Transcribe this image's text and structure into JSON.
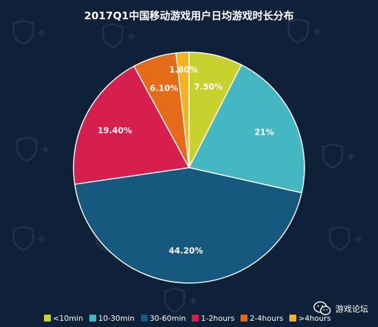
{
  "chart_data": {
    "type": "pie",
    "title": "2017Q1中国移动游戏用户日均游戏时长分布",
    "categories": [
      "<10min",
      "10-30min",
      "30-60min",
      "1-2hours",
      "2-4hours",
      ">4hours"
    ],
    "values": [
      7.5,
      21,
      44.2,
      19.4,
      6.1,
      1.8
    ],
    "data_labels": [
      "7.50%",
      "21%",
      "44.20%",
      "19.40%",
      "6.10%",
      "1.80%"
    ],
    "colors": [
      "#c8d22e",
      "#44b7c2",
      "#17587e",
      "#d71f4f",
      "#e66b18",
      "#f2b41f"
    ],
    "legend": "bottom"
  },
  "brand": {
    "name": "游戏论坛",
    "icon": "wechat-icon"
  }
}
